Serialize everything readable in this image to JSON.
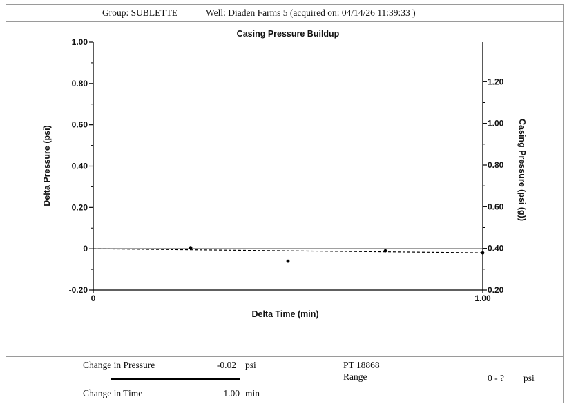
{
  "header": {
    "group": "Group: SUBLETTE",
    "well": "Well: Diaden Farms 5 (acquired on: 04/14/26 11:39:33 )"
  },
  "chart_data": {
    "type": "line",
    "title": "Casing Pressure Buildup",
    "xlabel": "Delta Time (min)",
    "ylabel": "Delta Pressure (psi)",
    "y2label": "Casing Pressure (psi (g))",
    "xlim": [
      0,
      1.0
    ],
    "ylim": [
      -0.2,
      1.0
    ],
    "y2lim": [
      0.2,
      1.39
    ],
    "x_ticks": [
      "0",
      "1.00"
    ],
    "y_ticks": [
      {
        "v": -0.2,
        "label": "-0.20"
      },
      {
        "v": 0,
        "label": "0"
      },
      {
        "v": 0.2,
        "label": "0.20"
      },
      {
        "v": 0.4,
        "label": "0.40"
      },
      {
        "v": 0.6,
        "label": "0.60"
      },
      {
        "v": 0.8,
        "label": "0.80"
      },
      {
        "v": 1.0,
        "label": "1.00"
      }
    ],
    "y2_ticks": [
      {
        "v": 0.2,
        "label": "0.20"
      },
      {
        "v": 0.4,
        "label": "0.40"
      },
      {
        "v": 0.6,
        "label": "0.60"
      },
      {
        "v": 0.8,
        "label": "0.80"
      },
      {
        "v": 1.0,
        "label": "1.00"
      },
      {
        "v": 1.2,
        "label": "1.20"
      }
    ],
    "series": [
      {
        "style": "dashed",
        "x": [
          0.0,
          1.0
        ],
        "y": [
          0.0,
          -0.02
        ]
      },
      {
        "style": "points",
        "x": [
          0.25,
          0.5,
          0.75,
          1.0
        ],
        "y": [
          0.005,
          -0.06,
          -0.01,
          -0.02
        ]
      }
    ],
    "zero_line": true,
    "grid": false,
    "colors": {
      "line": "#000000",
      "axis": "#000000"
    }
  },
  "footer": {
    "change_pressure_label": "Change in Pressure",
    "change_pressure_value": "-0.02",
    "change_pressure_unit": "psi",
    "change_time_label": "Change in Time",
    "change_time_value": "1.00",
    "change_time_unit": "min",
    "sensor_id": "PT 18868",
    "range_label": "Range",
    "range_value": "0 - ?",
    "range_unit": "psi"
  }
}
